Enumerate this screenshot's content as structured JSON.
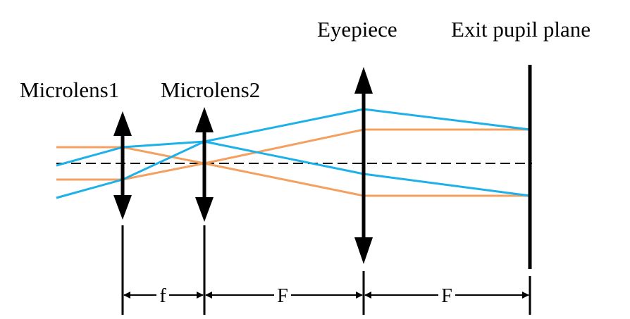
{
  "labels": {
    "microlens1": "Microlens1",
    "microlens2": "Microlens2",
    "eyepiece": "Eyepiece",
    "exit_pupil": "Exit pupil plane"
  },
  "dimensions": {
    "d1": "f",
    "d2": "F",
    "d3": "F"
  },
  "colors": {
    "orange_ray": "#F4A060",
    "blue_ray": "#1EB0E8",
    "axis": "#000000"
  }
}
